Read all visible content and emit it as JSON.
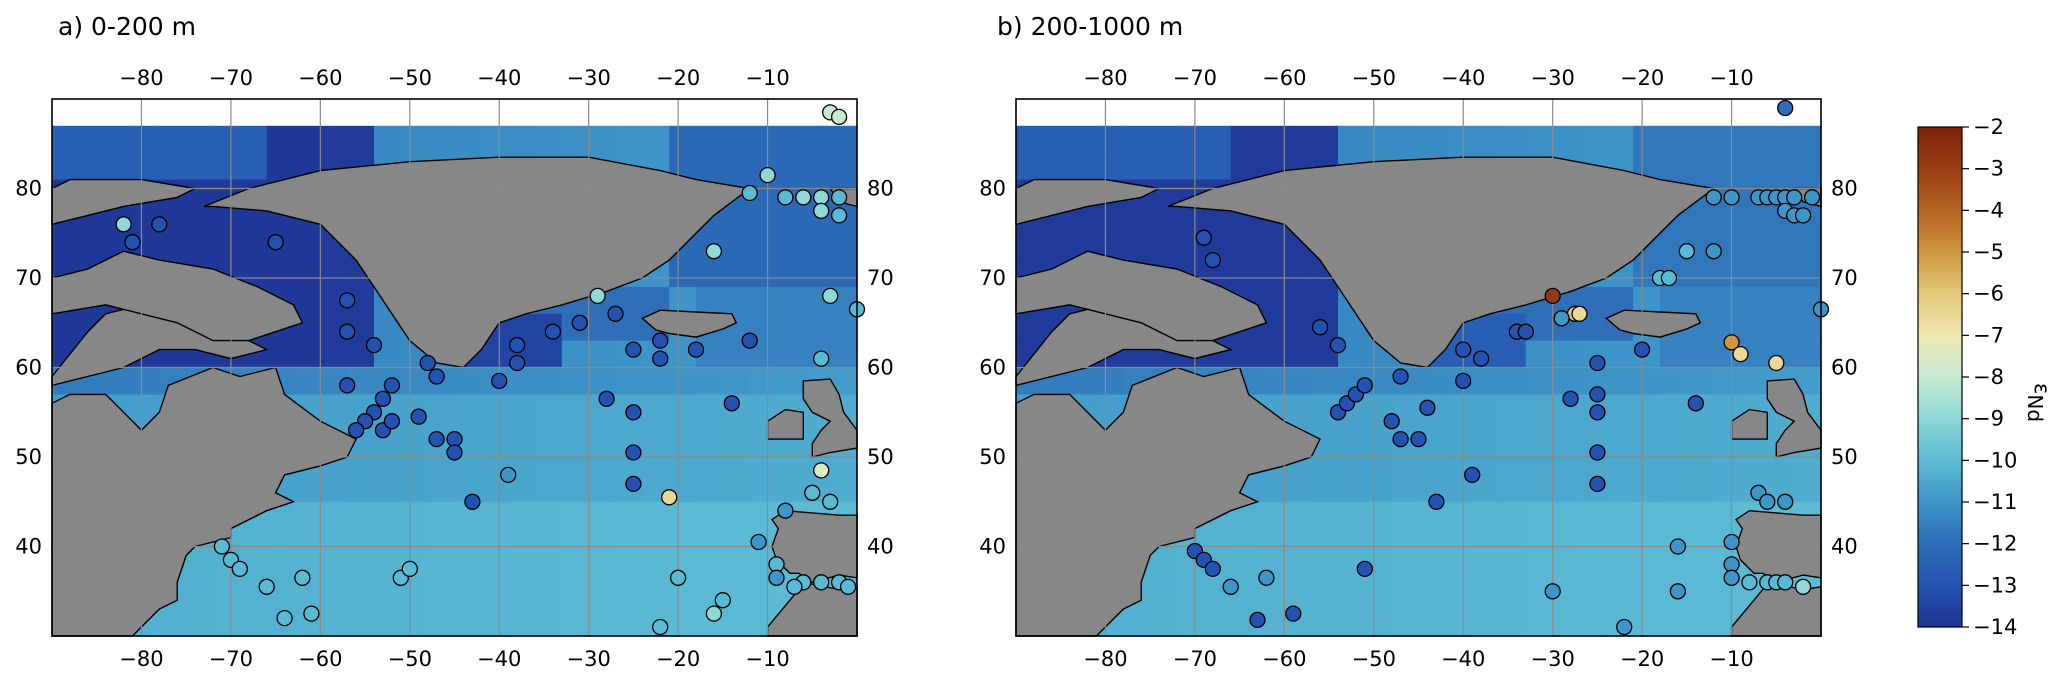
{
  "panels": [
    {
      "id": "a",
      "title": "a) 0-200 m",
      "points": [
        {
          "lon": -78,
          "lat": 76,
          "e": -13
        },
        {
          "lon": -81,
          "lat": 74,
          "e": -13
        },
        {
          "lon": -65,
          "lat": 74,
          "e": -13
        },
        {
          "lon": -57,
          "lat": 67.5,
          "e": -13
        },
        {
          "lon": -57,
          "lat": 64,
          "e": -13
        },
        {
          "lon": -54,
          "lat": 62.5,
          "e": -13
        },
        {
          "lon": -57,
          "lat": 58,
          "e": -13
        },
        {
          "lon": -52,
          "lat": 58,
          "e": -13
        },
        {
          "lon": -53,
          "lat": 56.5,
          "e": -13
        },
        {
          "lon": -54,
          "lat": 55,
          "e": -13
        },
        {
          "lon": -55,
          "lat": 54,
          "e": -13
        },
        {
          "lon": -56,
          "lat": 53,
          "e": -13
        },
        {
          "lon": -53,
          "lat": 53,
          "e": -13
        },
        {
          "lon": -52,
          "lat": 54,
          "e": -13
        },
        {
          "lon": -48,
          "lat": 60.5,
          "e": -13
        },
        {
          "lon": -47,
          "lat": 59,
          "e": -13
        },
        {
          "lon": -49,
          "lat": 54.5,
          "e": -13
        },
        {
          "lon": -47,
          "lat": 52,
          "e": -13
        },
        {
          "lon": -45,
          "lat": 52,
          "e": -13
        },
        {
          "lon": -45,
          "lat": 50.5,
          "e": -13
        },
        {
          "lon": -38,
          "lat": 62.5,
          "e": -13
        },
        {
          "lon": -40,
          "lat": 58.5,
          "e": -13
        },
        {
          "lon": -38,
          "lat": 60.5,
          "e": -13
        },
        {
          "lon": -34,
          "lat": 64,
          "e": -13
        },
        {
          "lon": -31,
          "lat": 65,
          "e": -13
        },
        {
          "lon": -27,
          "lat": 66,
          "e": -13
        },
        {
          "lon": -25,
          "lat": 62,
          "e": -13
        },
        {
          "lon": -22,
          "lat": 63,
          "e": -13
        },
        {
          "lon": -18,
          "lat": 62,
          "e": -13
        },
        {
          "lon": -12,
          "lat": 63,
          "e": -13
        },
        {
          "lon": -28,
          "lat": 56.5,
          "e": -13
        },
        {
          "lon": -25,
          "lat": 55,
          "e": -13
        },
        {
          "lon": -25,
          "lat": 50.5,
          "e": -13
        },
        {
          "lon": -25,
          "lat": 47,
          "e": -13
        },
        {
          "lon": -22,
          "lat": 61,
          "e": -13
        },
        {
          "lon": -14,
          "lat": 56,
          "e": -13
        },
        {
          "lon": -43,
          "lat": 45,
          "e": -13
        },
        {
          "lon": -39,
          "lat": 48,
          "e": -11
        },
        {
          "lon": -21,
          "lat": 45.5,
          "e": -6.5
        },
        {
          "lon": -29,
          "lat": 68,
          "e": -9
        },
        {
          "lon": -16,
          "lat": 73,
          "e": -9
        },
        {
          "lon": -10,
          "lat": 81.5,
          "e": -9
        },
        {
          "lon": -8,
          "lat": 79,
          "e": -10
        },
        {
          "lon": -6,
          "lat": 79,
          "e": -9
        },
        {
          "lon": -4,
          "lat": 79,
          "e": -9
        },
        {
          "lon": -2,
          "lat": 79,
          "e": -10
        },
        {
          "lon": -4,
          "lat": 77.5,
          "e": -9
        },
        {
          "lon": -2,
          "lat": 77,
          "e": -10
        },
        {
          "lon": -12,
          "lat": 79.5,
          "e": -10
        },
        {
          "lon": -3,
          "lat": 88.5,
          "e": -8
        },
        {
          "lon": -2,
          "lat": 88,
          "e": -8
        },
        {
          "lon": -3,
          "lat": 68,
          "e": -9
        },
        {
          "lon": 0,
          "lat": 66.5,
          "e": -10
        },
        {
          "lon": -4,
          "lat": 61,
          "e": -10
        },
        {
          "lon": -82,
          "lat": 76,
          "e": -9
        },
        {
          "lon": -4,
          "lat": 48.5,
          "e": -7.5
        },
        {
          "lon": -5,
          "lat": 46,
          "e": -10
        },
        {
          "lon": -3,
          "lat": 45,
          "e": -10
        },
        {
          "lon": -8,
          "lat": 44,
          "e": -11
        },
        {
          "lon": -11,
          "lat": 40.5,
          "e": -11
        },
        {
          "lon": -9,
          "lat": 38,
          "e": -10
        },
        {
          "lon": -9,
          "lat": 36.5,
          "e": -11
        },
        {
          "lon": -6,
          "lat": 36,
          "e": -10
        },
        {
          "lon": -4,
          "lat": 36,
          "e": -10
        },
        {
          "lon": -2,
          "lat": 36,
          "e": -10
        },
        {
          "lon": -1,
          "lat": 35.5,
          "e": -10
        },
        {
          "lon": -7,
          "lat": 35.5,
          "e": -10
        },
        {
          "lon": -15,
          "lat": 34,
          "e": -10
        },
        {
          "lon": -16,
          "lat": 32.5,
          "e": -9
        },
        {
          "lon": -20,
          "lat": 36.5,
          "e": -10
        },
        {
          "lon": -22,
          "lat": 31,
          "e": -10
        },
        {
          "lon": -71,
          "lat": 40,
          "e": -10
        },
        {
          "lon": -70,
          "lat": 38.5,
          "e": -10
        },
        {
          "lon": -69,
          "lat": 37.5,
          "e": -10
        },
        {
          "lon": -66,
          "lat": 35.5,
          "e": -10
        },
        {
          "lon": -62,
          "lat": 36.5,
          "e": -10
        },
        {
          "lon": -51,
          "lat": 36.5,
          "e": -10
        },
        {
          "lon": -50,
          "lat": 37.5,
          "e": -10
        },
        {
          "lon": -61,
          "lat": 32.5,
          "e": -10
        },
        {
          "lon": -64,
          "lat": 32,
          "e": -10
        }
      ]
    },
    {
      "id": "b",
      "title": "b) 200-1000 m",
      "points": [
        {
          "lon": -69,
          "lat": 74.5,
          "e": -13
        },
        {
          "lon": -68,
          "lat": 72,
          "e": -13
        },
        {
          "lon": -56,
          "lat": 64.5,
          "e": -13
        },
        {
          "lon": -54,
          "lat": 62.5,
          "e": -13
        },
        {
          "lon": -54,
          "lat": 55,
          "e": -13
        },
        {
          "lon": -53,
          "lat": 56,
          "e": -13
        },
        {
          "lon": -52,
          "lat": 57,
          "e": -13
        },
        {
          "lon": -51,
          "lat": 58,
          "e": -13
        },
        {
          "lon": -47,
          "lat": 59,
          "e": -13
        },
        {
          "lon": -44,
          "lat": 55.5,
          "e": -13
        },
        {
          "lon": -47,
          "lat": 52,
          "e": -13
        },
        {
          "lon": -45,
          "lat": 52,
          "e": -13
        },
        {
          "lon": -48,
          "lat": 54,
          "e": -13
        },
        {
          "lon": -40,
          "lat": 62,
          "e": -13
        },
        {
          "lon": -38,
          "lat": 61,
          "e": -13
        },
        {
          "lon": -40,
          "lat": 58.5,
          "e": -13
        },
        {
          "lon": -34,
          "lat": 64,
          "e": -13
        },
        {
          "lon": -33,
          "lat": 64,
          "e": -13
        },
        {
          "lon": -28,
          "lat": 56.5,
          "e": -13
        },
        {
          "lon": -25,
          "lat": 57,
          "e": -13
        },
        {
          "lon": -25,
          "lat": 55,
          "e": -13
        },
        {
          "lon": -25,
          "lat": 50.5,
          "e": -13
        },
        {
          "lon": -25,
          "lat": 47,
          "e": -13
        },
        {
          "lon": -25,
          "lat": 60.5,
          "e": -13
        },
        {
          "lon": -20,
          "lat": 62,
          "e": -13
        },
        {
          "lon": -14,
          "lat": 56,
          "e": -13
        },
        {
          "lon": -43,
          "lat": 45,
          "e": -13
        },
        {
          "lon": -39,
          "lat": 48,
          "e": -13
        },
        {
          "lon": -51,
          "lat": 37.5,
          "e": -13
        },
        {
          "lon": -63,
          "lat": 31.8,
          "e": -13
        },
        {
          "lon": -59,
          "lat": 32.5,
          "e": -13
        },
        {
          "lon": -70,
          "lat": 39.5,
          "e": -13
        },
        {
          "lon": -69,
          "lat": 38.5,
          "e": -13
        },
        {
          "lon": -68,
          "lat": 37.5,
          "e": -13
        },
        {
          "lon": -30,
          "lat": 68,
          "e": -2.8
        },
        {
          "lon": -27.5,
          "lat": 66,
          "e": -6
        },
        {
          "lon": -27,
          "lat": 66,
          "e": -6.5
        },
        {
          "lon": -29,
          "lat": 65.5,
          "e": -11
        },
        {
          "lon": -10,
          "lat": 62.8,
          "e": -5
        },
        {
          "lon": -9,
          "lat": 61.5,
          "e": -6.5
        },
        {
          "lon": -5,
          "lat": 60.5,
          "e": -6.5
        },
        {
          "lon": -18,
          "lat": 70,
          "e": -10
        },
        {
          "lon": -17,
          "lat": 70,
          "e": -10
        },
        {
          "lon": -15,
          "lat": 73,
          "e": -10
        },
        {
          "lon": -12,
          "lat": 73,
          "e": -11
        },
        {
          "lon": -12,
          "lat": 79,
          "e": -11
        },
        {
          "lon": -10,
          "lat": 79,
          "e": -11
        },
        {
          "lon": -7,
          "lat": 79,
          "e": -11
        },
        {
          "lon": -6,
          "lat": 79,
          "e": -11
        },
        {
          "lon": -5,
          "lat": 79,
          "e": -11
        },
        {
          "lon": -4,
          "lat": 79,
          "e": -11
        },
        {
          "lon": -3,
          "lat": 79,
          "e": -11
        },
        {
          "lon": -1,
          "lat": 79,
          "e": -11
        },
        {
          "lon": -4,
          "lat": 77.5,
          "e": -11
        },
        {
          "lon": -3,
          "lat": 77,
          "e": -11
        },
        {
          "lon": -2,
          "lat": 77,
          "e": -11
        },
        {
          "lon": -4,
          "lat": 89,
          "e": -12
        },
        {
          "lon": 0,
          "lat": 66.5,
          "e": -11
        },
        {
          "lon": -16,
          "lat": 40,
          "e": -11
        },
        {
          "lon": -16,
          "lat": 35,
          "e": -11
        },
        {
          "lon": -30,
          "lat": 35,
          "e": -11
        },
        {
          "lon": -10,
          "lat": 40.5,
          "e": -11
        },
        {
          "lon": -10,
          "lat": 38,
          "e": -11
        },
        {
          "lon": -10,
          "lat": 36.5,
          "e": -11
        },
        {
          "lon": -8,
          "lat": 36,
          "e": -10
        },
        {
          "lon": -6,
          "lat": 36,
          "e": -10
        },
        {
          "lon": -5,
          "lat": 36,
          "e": -10
        },
        {
          "lon": -4,
          "lat": 36,
          "e": -10
        },
        {
          "lon": -2,
          "lat": 35.5,
          "e": -9
        },
        {
          "lon": -7,
          "lat": 46,
          "e": -11
        },
        {
          "lon": -6,
          "lat": 45,
          "e": -11
        },
        {
          "lon": -4,
          "lat": 45,
          "e": -11
        },
        {
          "lon": -66,
          "lat": 35.5,
          "e": -11
        },
        {
          "lon": -62,
          "lat": 36.5,
          "e": -11
        },
        {
          "lon": -22,
          "lat": 31,
          "e": -11
        }
      ]
    }
  ],
  "axes": {
    "lon_ticks": [
      "−80",
      "−70",
      "−60",
      "−50",
      "−40",
      "−30",
      "−20",
      "−10"
    ],
    "lat_ticks": [
      "80",
      "70",
      "60",
      "50",
      "40"
    ]
  },
  "colorbar": {
    "label": "ε",
    "label_sub": "Nd",
    "ticks": [
      "−2",
      "−3",
      "−4",
      "−5",
      "−6",
      "−7",
      "−8",
      "−9",
      "−10",
      "−11",
      "−12",
      "−13",
      "−14"
    ],
    "min": -14,
    "max": -2
  }
}
